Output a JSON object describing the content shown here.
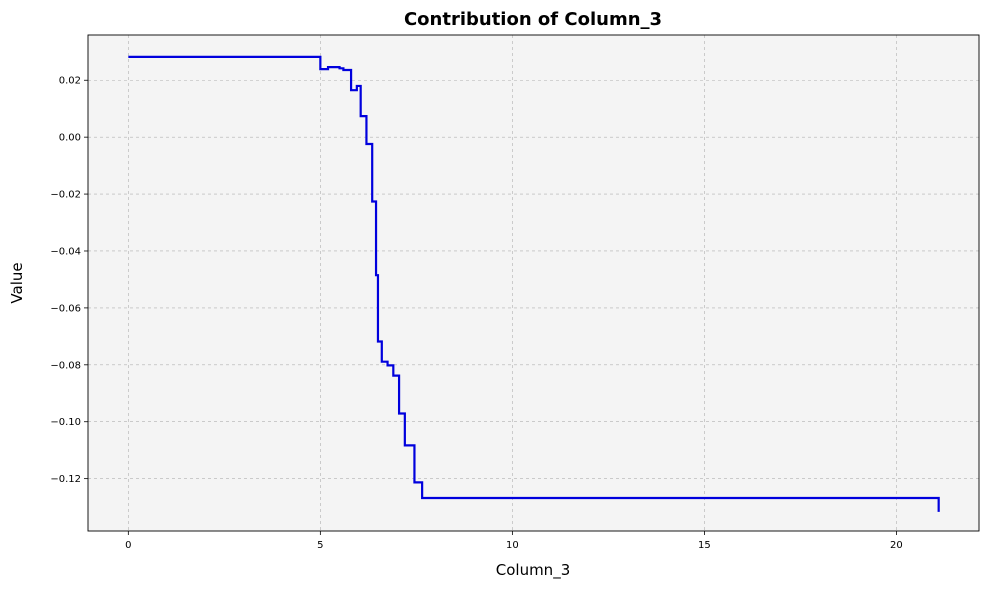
{
  "chart_data": {
    "type": "line",
    "step": true,
    "title": "Contribution of Column_3",
    "xlabel": "Column_3",
    "ylabel": "Value",
    "xlim": [
      -1.05,
      22.15
    ],
    "ylim": [
      -0.1384,
      0.0359
    ],
    "xticks": [
      0,
      5,
      10,
      15,
      20
    ],
    "xtick_labels": [
      "0",
      "5",
      "10",
      "15",
      "20"
    ],
    "yticks": [
      0.02,
      0.0,
      -0.02,
      -0.04,
      -0.06,
      -0.08,
      -0.1,
      -0.12
    ],
    "ytick_labels": [
      "0.02",
      "0.00",
      "−0.02",
      "−0.04",
      "−0.06",
      "−0.08",
      "−0.10",
      "−0.12"
    ],
    "grid": true,
    "line_color": "#0000dd",
    "plot_background": "#f4f4f4",
    "series": [
      {
        "x": [
          0,
          5.0,
          5.2,
          5.5,
          5.6,
          5.8,
          5.95,
          6.05,
          6.2,
          6.35,
          6.45,
          6.5,
          6.6,
          6.75,
          6.9,
          7.05,
          7.2,
          7.45,
          7.65,
          21.1
        ],
        "y": [
          0.0282,
          0.0239,
          0.0246,
          0.0242,
          0.0236,
          0.0165,
          0.018,
          0.0074,
          -0.0024,
          -0.0226,
          -0.0485,
          -0.0718,
          -0.0789,
          -0.0802,
          -0.0838,
          -0.0971,
          -0.1083,
          -0.1213,
          -0.1268,
          -0.1317
        ]
      }
    ]
  }
}
